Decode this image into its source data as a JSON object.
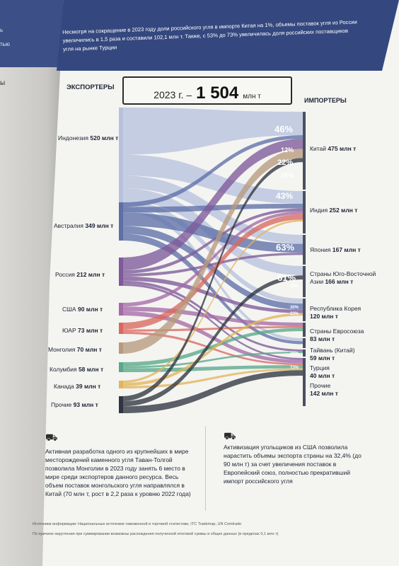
{
  "header": {
    "text": "Несмотря на сокращение в 2023 году доли российского угля в импорте Китая на 1%, объемы поставок угля из России увеличились в 1,5 раза и составили 102,1 млн т. Также, с 53% до 73% увеличилась доля российских поставщиков угля на рынке Турции"
  },
  "left_page": {
    "fragments": [
      "ь",
      "тью",
      "ы"
    ]
  },
  "labels": {
    "exporters": "ЭКСПОРТЕРЫ",
    "importers": "ИМПОРТЕРЫ"
  },
  "total": {
    "prefix": "2023 г. –",
    "value": "1 504",
    "unit": "млн т"
  },
  "exporters": [
    {
      "name": "Индонезия",
      "value": "520 млн т",
      "color": "#b7c1de"
    },
    {
      "name": "Австралия",
      "value": "349 млн т",
      "color": "#5e6fa8"
    },
    {
      "name": "Россия",
      "value": "212 млн т",
      "color": "#7d5a9a"
    },
    {
      "name": "США",
      "value": "90 млн т",
      "color": "#a46aa8"
    },
    {
      "name": "ЮАР",
      "value": "73 млн т",
      "color": "#d9695f"
    },
    {
      "name": "Монголия",
      "value": "70 млн т",
      "color": "#b79a7e"
    },
    {
      "name": "Колумбия",
      "value": "58 млн т",
      "color": "#58a88a"
    },
    {
      "name": "Канада",
      "value": "39 млн т",
      "color": "#e2b45a"
    },
    {
      "name": "Прочие",
      "value": "93 млн т",
      "color": "#2f3540"
    }
  ],
  "importers": [
    {
      "name": "Китай",
      "value": "475 млн т"
    },
    {
      "name": "Индия",
      "value": "252 млн т"
    },
    {
      "name": "Япония",
      "value": "167 млн т"
    },
    {
      "name": "Страны Юго-Восточной Азии",
      "value": "166 млн т"
    },
    {
      "name": "Республика Корея",
      "value": "120 млн т"
    },
    {
      "name": "Страны Евросоюза",
      "value": "83 млн т"
    },
    {
      "name": "Тайвань (Китай)",
      "value": "59 млн т"
    },
    {
      "name": "Турция",
      "value": "40 млн т"
    },
    {
      "name": "Прочие",
      "value": "142 млн т"
    }
  ],
  "percentages": [
    {
      "text": "46%"
    },
    {
      "text": "12%"
    },
    {
      "text": "22%"
    },
    {
      "text": "15%"
    },
    {
      "text": "43%"
    },
    {
      "text": "63%"
    },
    {
      "text": "61%"
    },
    {
      "text": "16%"
    },
    {
      "text": "30%"
    },
    {
      "text": "23%"
    },
    {
      "text": "49%"
    },
    {
      "text": "73%"
    }
  ],
  "notes": [
    {
      "text": "Активная разработка одного из крупнейших в мире месторождений каменного угля Таван-Толгой позволила Монголии в 2023 году занять 6 место в мире среди экспортеров данного ресурса. Весь объем поставок монгольского угля направлялся в Китай (70 млн т, рост в 2,2 раза к уровню 2022 года)"
    },
    {
      "text": "Активизация угольщиков из США позволила нарастить объемы экспорта страны на 32,4% (до 90 млн т) за счет увеличения поставок в Европейский союз, полностью прекративший импорт российского угля"
    }
  ],
  "footnotes": [
    "Источники информации: Национальные источники таможенной и торговой статистики, ITC Trademap, UN Comtrade",
    "По причине округления при суммировании возможны расхождения полученной итоговой суммы и общих данных (в пределах 0,1 млн т)"
  ]
}
